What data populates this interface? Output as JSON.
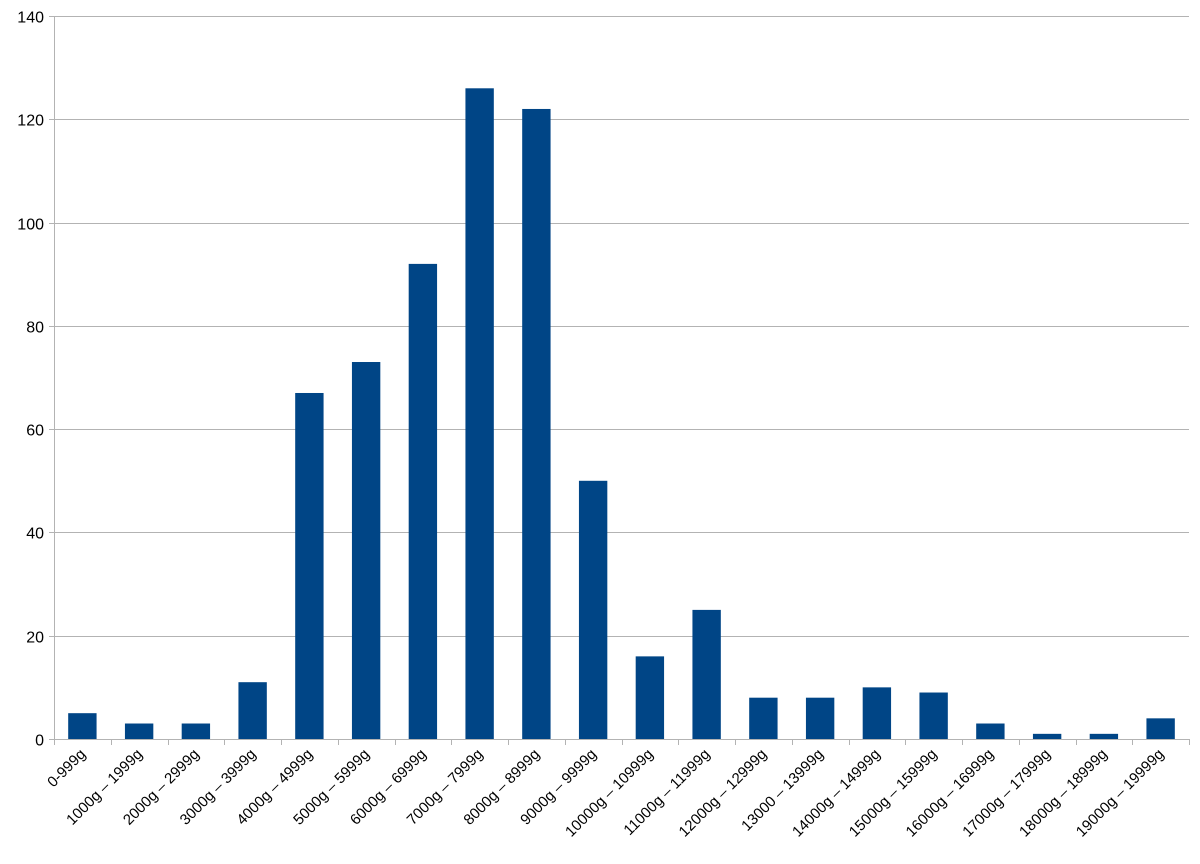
{
  "chart_data": {
    "type": "bar",
    "title": "",
    "xlabel": "",
    "ylabel": "",
    "categories": [
      "0-999g",
      "1000g – 1999g",
      "2000g – 2999g",
      "3000g – 3999g",
      "4000g – 4999g",
      "5000g – 5999g",
      "6000g – 6999g",
      "7000g – 7999g",
      "8000g – 8999g",
      "9000g – 9999g",
      "10000g – 10999g",
      "11000g – 11999g",
      "12000g – 12999g",
      "13000 – 13999g",
      "14000g – 14999g",
      "15000g – 15999g",
      "16000g – 16999g",
      "17000g – 17999g",
      "18000g – 18999g",
      "19000g – 19999g"
    ],
    "values": [
      5,
      3,
      3,
      11,
      67,
      73,
      92,
      126,
      122,
      50,
      16,
      25,
      8,
      8,
      10,
      9,
      3,
      1,
      1,
      4
    ],
    "ylim": [
      0,
      140
    ],
    "yticks": [
      0,
      20,
      40,
      60,
      80,
      100,
      120,
      140
    ],
    "grid": true,
    "legend": "none",
    "bar_color": "#004586"
  }
}
